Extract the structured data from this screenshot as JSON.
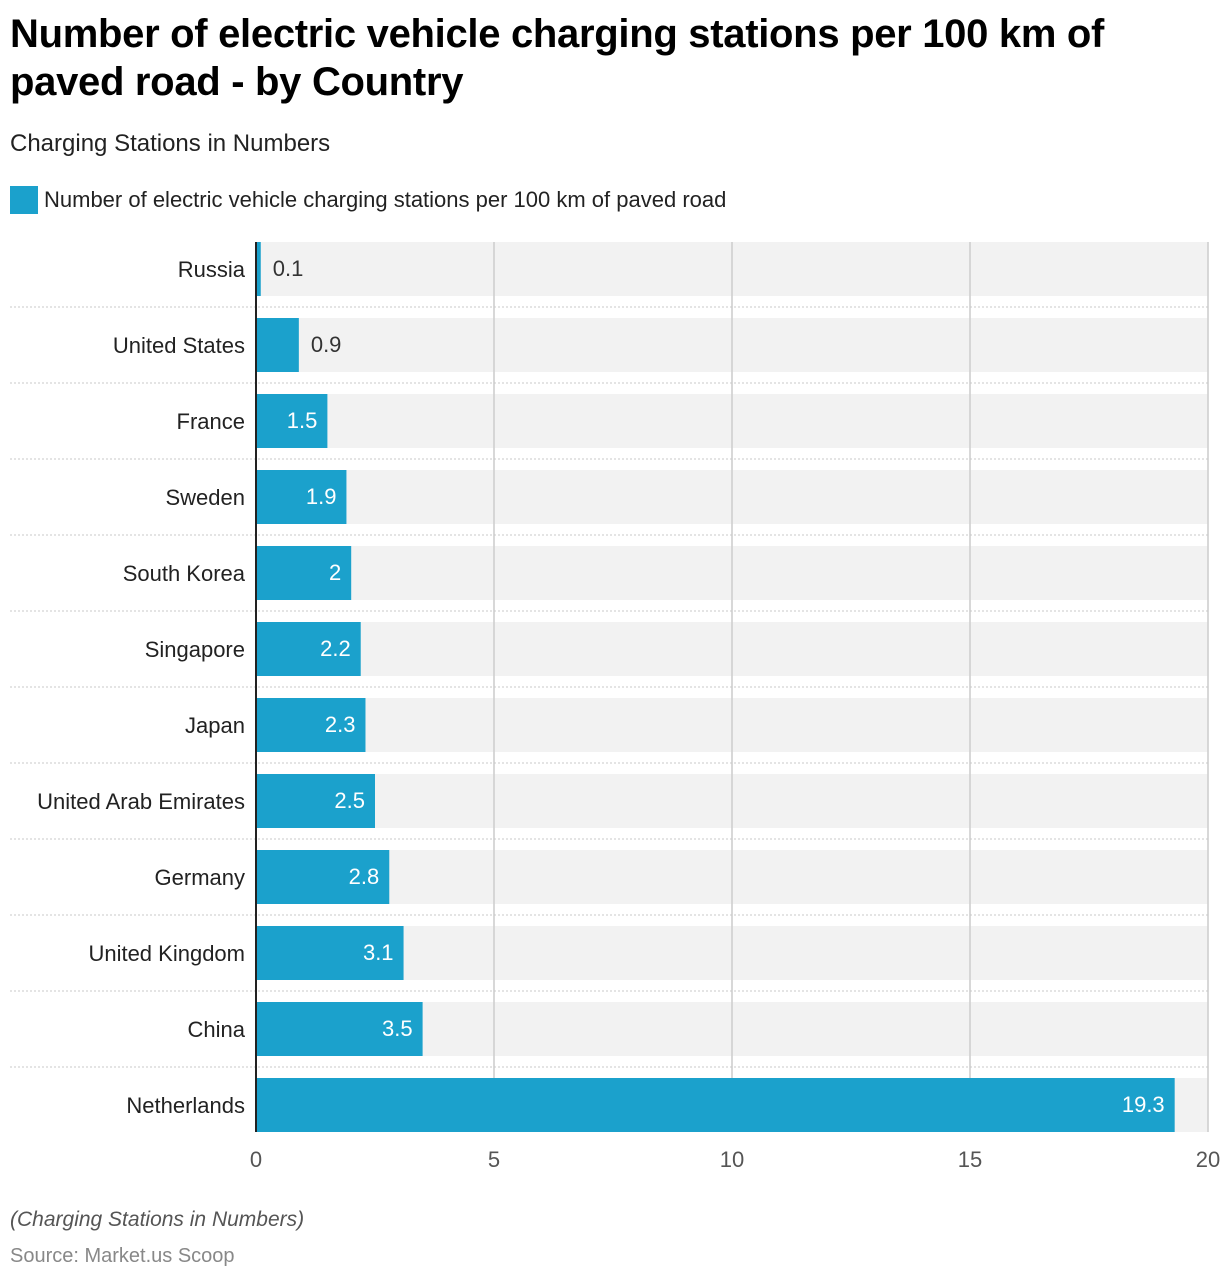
{
  "chart_data": {
    "type": "bar",
    "orientation": "horizontal",
    "title": "Number of electric vehicle charging stations per 100 km of paved road - by Country",
    "subtitle": "Charging Stations in Numbers",
    "xlabel": "",
    "ylabel": "",
    "xlim": [
      0,
      20
    ],
    "x_ticks": [
      0,
      5,
      10,
      15,
      20
    ],
    "grid": true,
    "legend_position": "top-left",
    "categories": [
      "Russia",
      "United States",
      "France",
      "Sweden",
      "South Korea",
      "Singapore",
      "Japan",
      "United Arab Emirates",
      "Germany",
      "United Kingdom",
      "China",
      "Netherlands"
    ],
    "series": [
      {
        "name": "Number of electric vehicle charging stations per 100 km of paved road",
        "color": "#1ba1cc",
        "values": [
          0.1,
          0.9,
          1.5,
          1.9,
          2,
          2.2,
          2.3,
          2.5,
          2.8,
          3.1,
          3.5,
          19.3
        ],
        "labels": [
          "0.1",
          "0.9",
          "1.5",
          "1.9",
          "2",
          "2.2",
          "2.3",
          "2.5",
          "2.8",
          "3.1",
          "3.5",
          "19.3"
        ]
      }
    ]
  },
  "footer": {
    "note": "(Charging Stations in Numbers)",
    "source": "Source: Market.us Scoop"
  },
  "colors": {
    "bar": "#1ba1cc",
    "track": "#f2f2f2",
    "gridline": "#cccccc",
    "axis": "#222222"
  }
}
